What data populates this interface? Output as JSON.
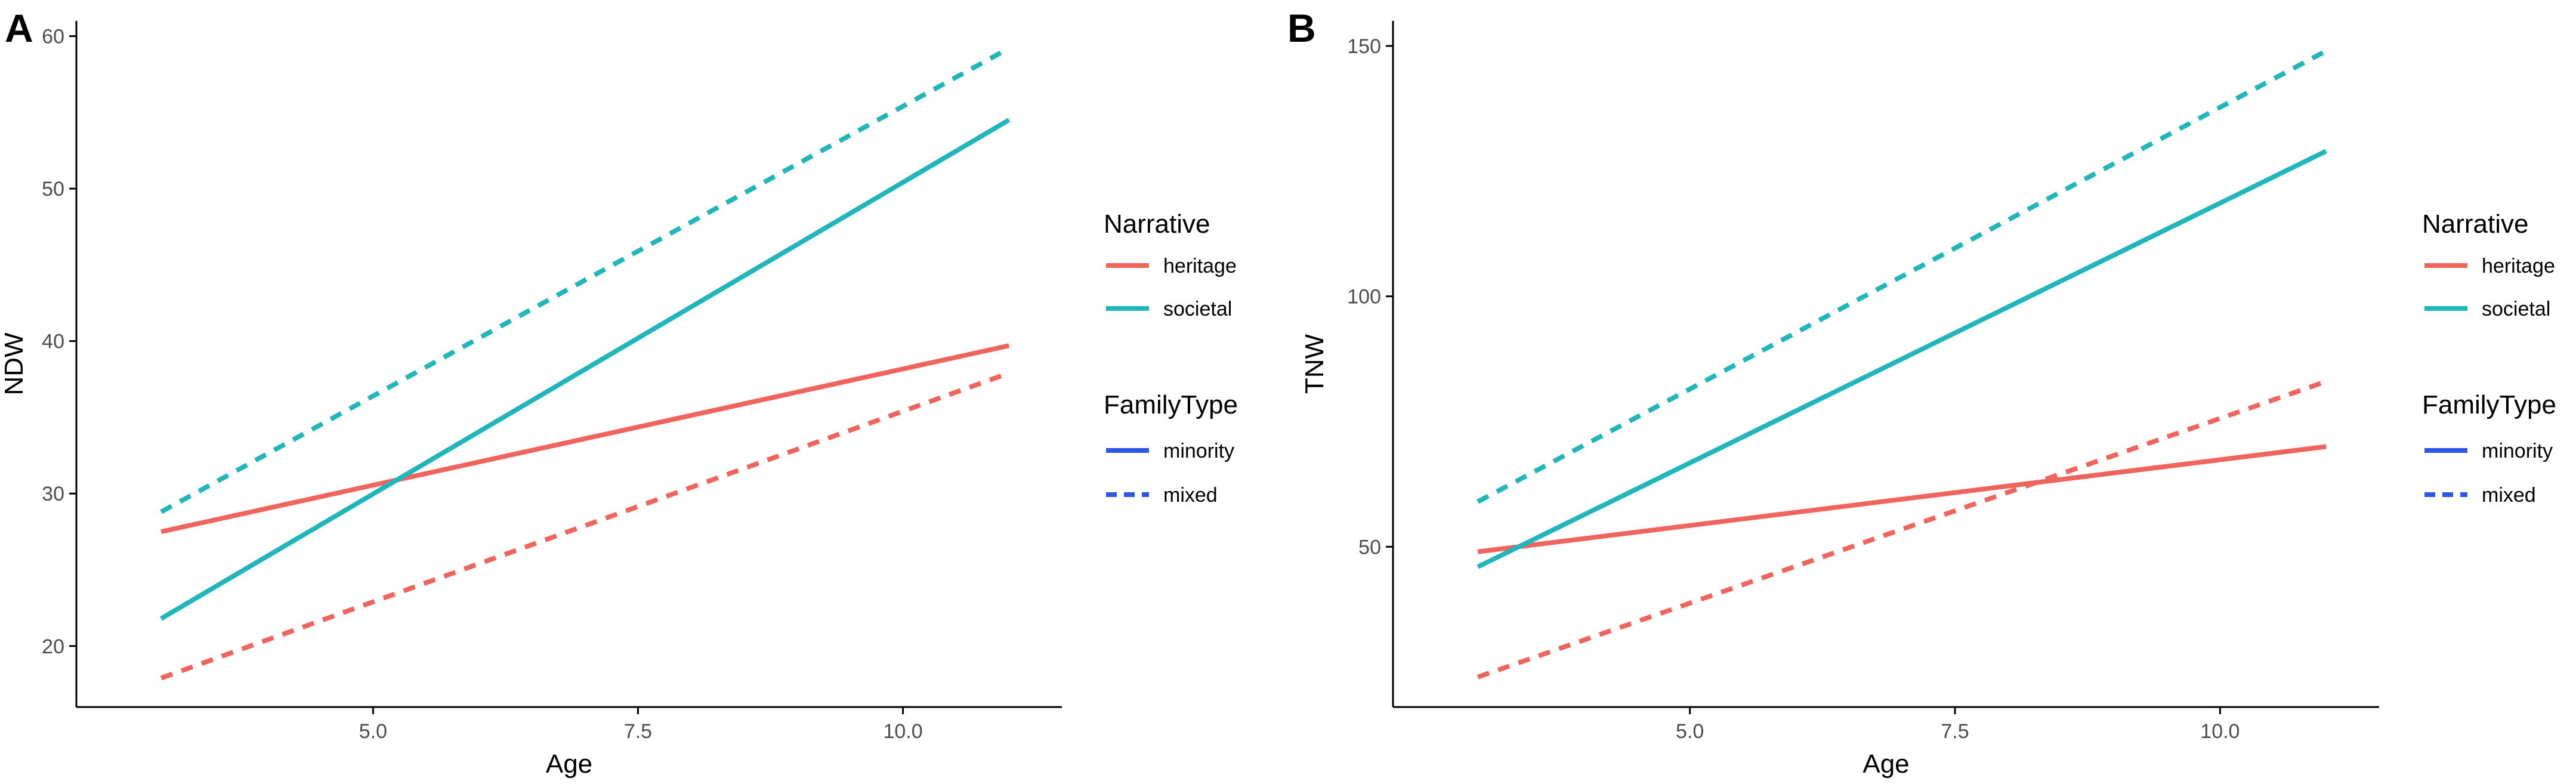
{
  "colors": {
    "heritage": "#F0645E",
    "societal": "#21B5BC",
    "minority": "#2F55E6",
    "mixed": "#2F55E6",
    "axis": "#000000",
    "tick_text": "#4d4d4d"
  },
  "chart_data": [
    {
      "panel_label": "A",
      "type": "line",
      "xlabel": "Age",
      "ylabel": "NDW",
      "xlim": [
        2.2,
        11.5
      ],
      "ylim": [
        16,
        61
      ],
      "x_ticks": [
        5.0,
        7.5,
        10.0
      ],
      "x_tick_labels": [
        "5.0",
        "7.5",
        "10.0"
      ],
      "y_ticks": [
        20,
        30,
        40,
        50,
        60
      ],
      "y_tick_labels": [
        "20",
        "30",
        "40",
        "50",
        "60"
      ],
      "series": [
        {
          "narrative": "heritage",
          "family_type": "minority",
          "x": [
            3,
            11
          ],
          "y": [
            27.5,
            39.7
          ]
        },
        {
          "narrative": "heritage",
          "family_type": "mixed",
          "x": [
            3,
            11
          ],
          "y": [
            17.9,
            37.9
          ]
        },
        {
          "narrative": "societal",
          "family_type": "minority",
          "x": [
            3,
            11
          ],
          "y": [
            21.8,
            54.5
          ]
        },
        {
          "narrative": "societal",
          "family_type": "mixed",
          "x": [
            3,
            11
          ],
          "y": [
            28.8,
            59.2
          ]
        }
      ],
      "legend": {
        "narrative_title": "Narrative",
        "narrative_items": [
          "heritage",
          "societal"
        ],
        "family_title": "FamilyType",
        "family_items": [
          "minority",
          "mixed"
        ]
      }
    },
    {
      "panel_label": "B",
      "type": "line",
      "xlabel": "Age",
      "ylabel": "TNW",
      "xlim": [
        2.2,
        11.5
      ],
      "ylim": [
        18,
        155
      ],
      "x_ticks": [
        5.0,
        7.5,
        10.0
      ],
      "x_tick_labels": [
        "5.0",
        "7.5",
        "10.0"
      ],
      "y_ticks": [
        50,
        100,
        150
      ],
      "y_tick_labels": [
        "50",
        "100",
        "150"
      ],
      "series": [
        {
          "narrative": "heritage",
          "family_type": "minority",
          "x": [
            3,
            11
          ],
          "y": [
            49,
            70
          ]
        },
        {
          "narrative": "heritage",
          "family_type": "mixed",
          "x": [
            3,
            11
          ],
          "y": [
            24,
            83
          ]
        },
        {
          "narrative": "societal",
          "family_type": "minority",
          "x": [
            3,
            11
          ],
          "y": [
            46,
            129
          ]
        },
        {
          "narrative": "societal",
          "family_type": "mixed",
          "x": [
            3,
            11
          ],
          "y": [
            59,
            149
          ]
        }
      ],
      "legend": {
        "narrative_title": "Narrative",
        "narrative_items": [
          "heritage",
          "societal"
        ],
        "family_title": "FamilyType",
        "family_items": [
          "minority",
          "mixed"
        ]
      }
    }
  ]
}
